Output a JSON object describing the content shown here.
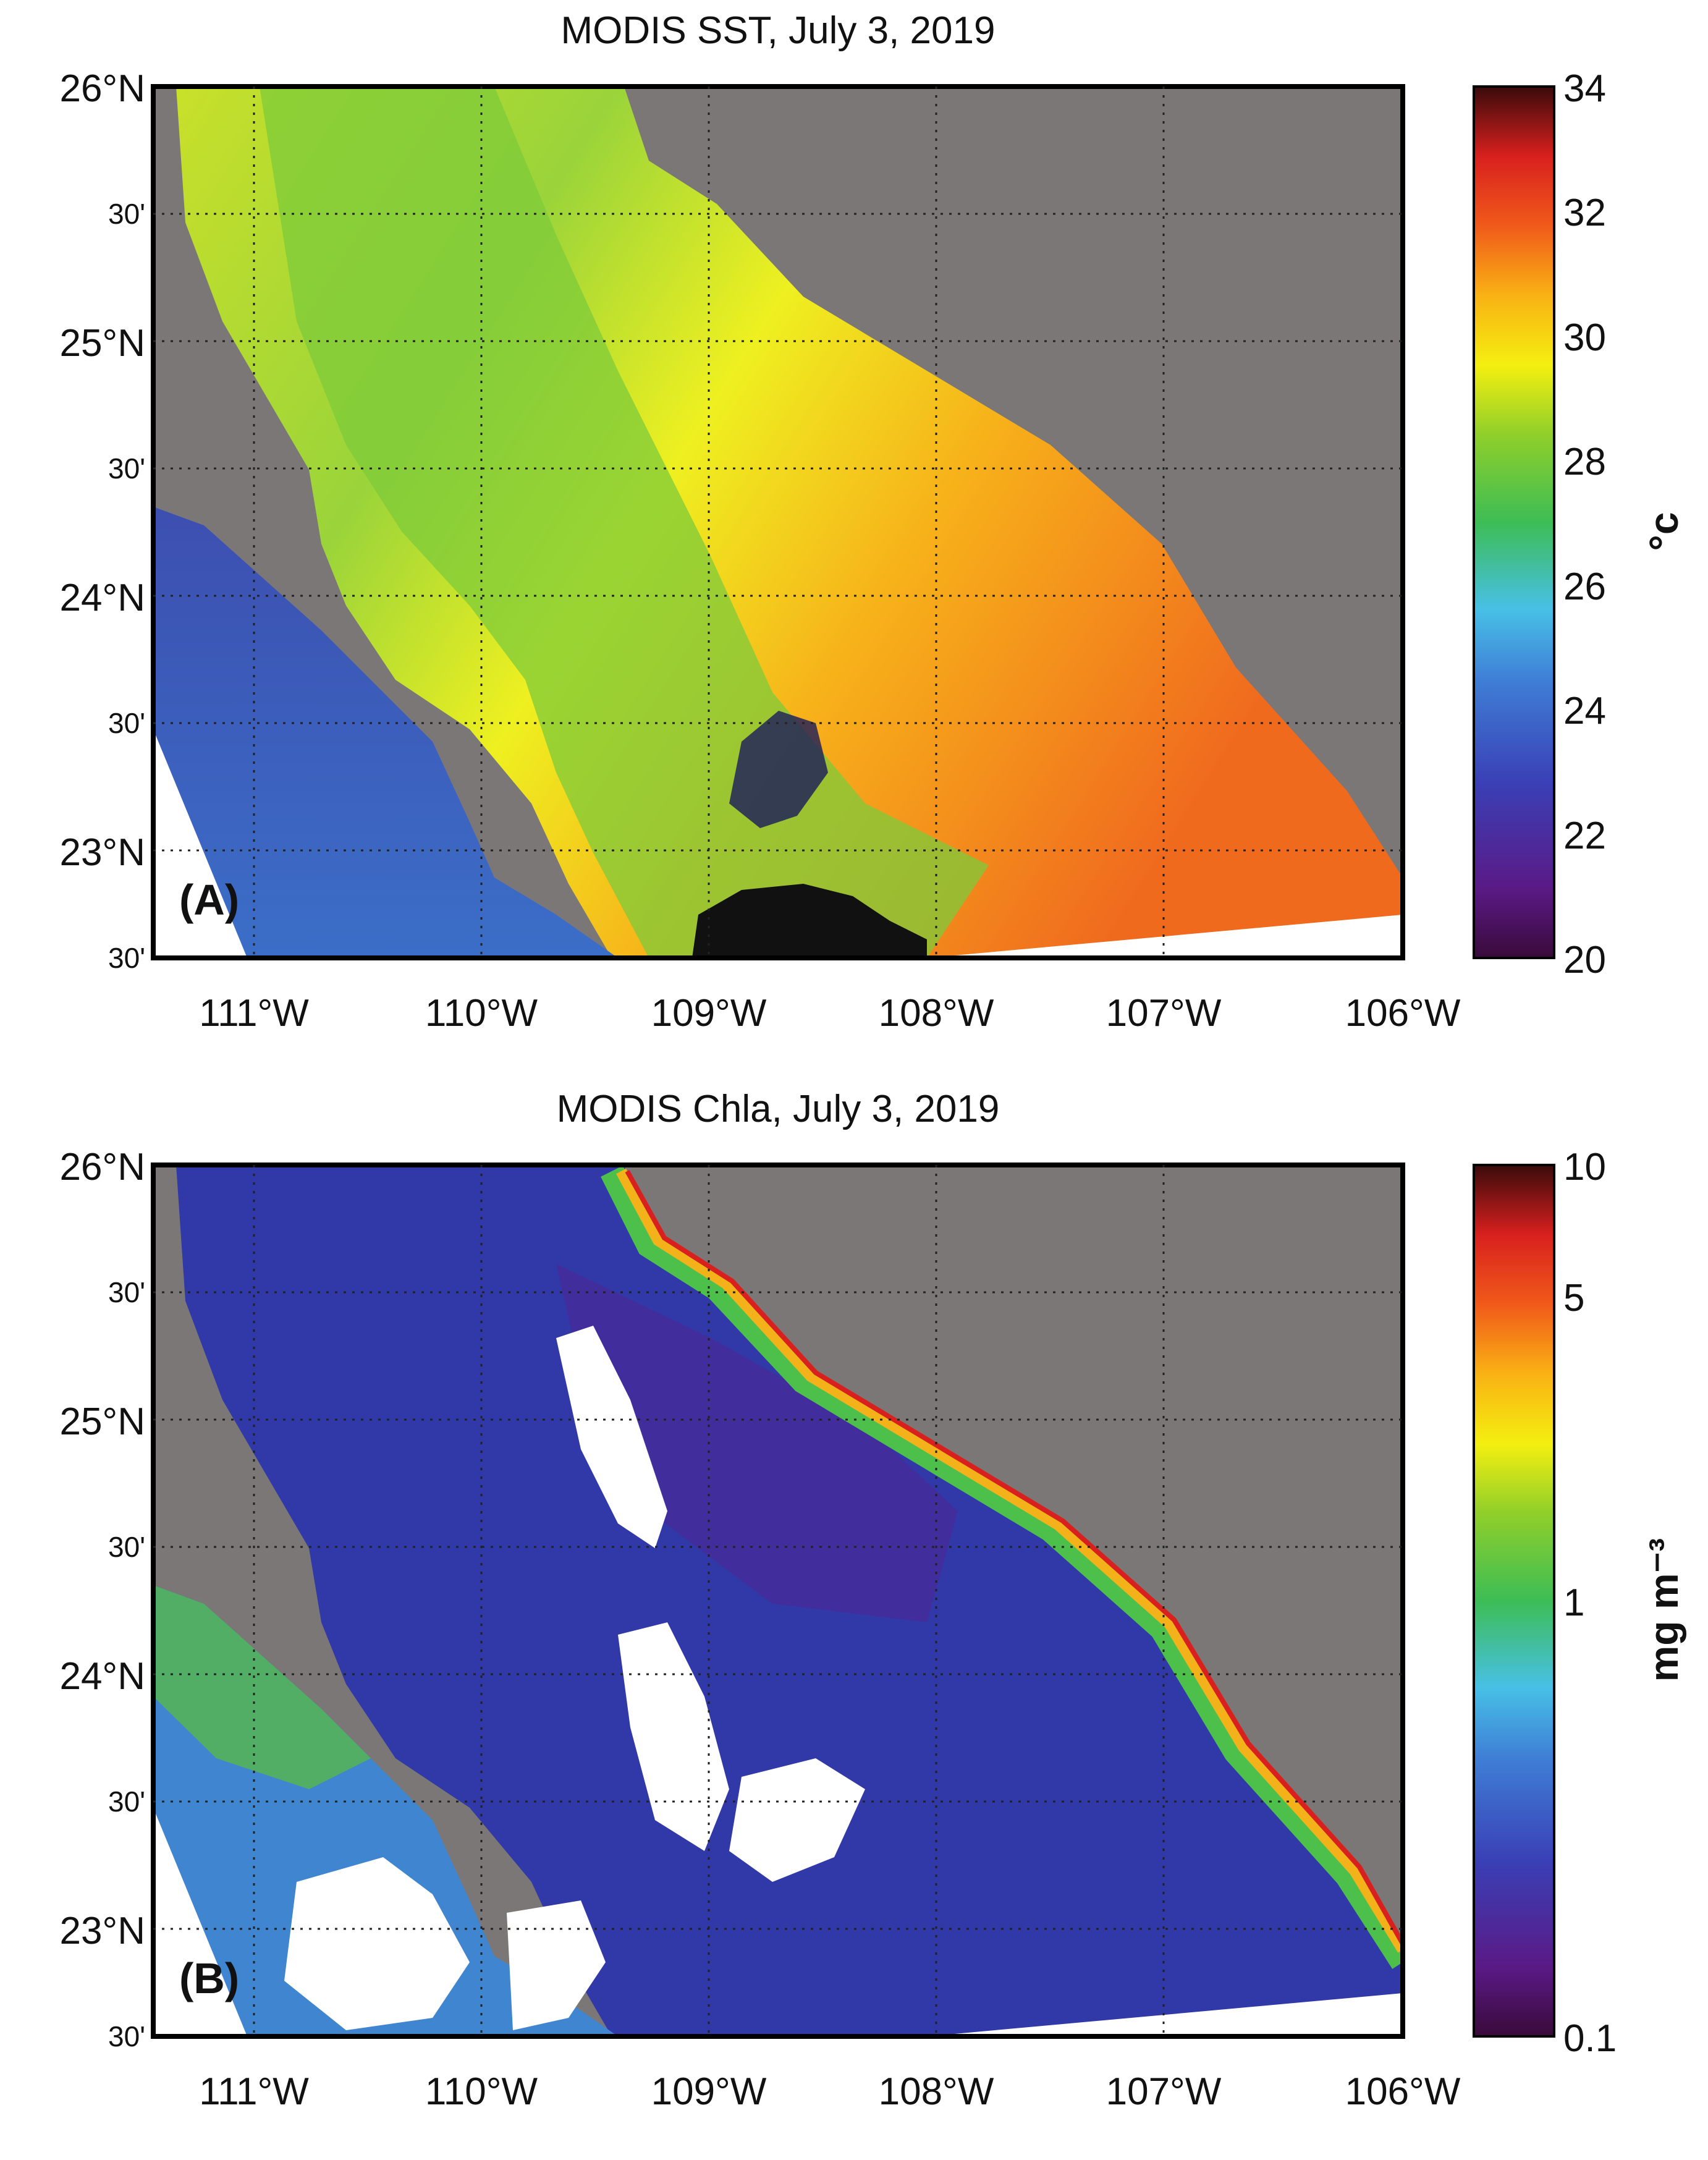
{
  "panels": [
    {
      "title": "MODIS SST, July 3, 2019",
      "panel_label": "(A)",
      "unit": "°c",
      "colorbar_ticks": [
        "34",
        "32",
        "30",
        "28",
        "26",
        "24",
        "22",
        "20"
      ],
      "y_labels": [
        {
          "text": "26°N",
          "major": true
        },
        {
          "text": "30'",
          "major": false
        },
        {
          "text": "25°N",
          "major": true
        },
        {
          "text": "30'",
          "major": false
        },
        {
          "text": "24°N",
          "major": true
        },
        {
          "text": "30'",
          "major": false
        },
        {
          "text": "23°N",
          "major": true
        },
        {
          "text": "30'",
          "major": false
        }
      ],
      "x_labels": [
        "111°W",
        "110°W",
        "109°W",
        "108°W",
        "107°W",
        "106°W"
      ]
    },
    {
      "title": "MODIS Chla, July 3, 2019",
      "panel_label": "(B)",
      "unit": "mg m⁻³",
      "colorbar_ticks": [
        "10",
        "5",
        "1",
        "0.1"
      ],
      "y_labels": [
        {
          "text": "26°N",
          "major": true
        },
        {
          "text": "30'",
          "major": false
        },
        {
          "text": "25°N",
          "major": true
        },
        {
          "text": "30'",
          "major": false
        },
        {
          "text": "24°N",
          "major": true
        },
        {
          "text": "30'",
          "major": false
        },
        {
          "text": "23°N",
          "major": true
        },
        {
          "text": "30'",
          "major": false
        }
      ],
      "x_labels": [
        "111°W",
        "110°W",
        "109°W",
        "108°W",
        "107°W",
        "106°W"
      ]
    }
  ],
  "colors": {
    "land": "#7b7777",
    "no_data": "#ffffff"
  }
}
